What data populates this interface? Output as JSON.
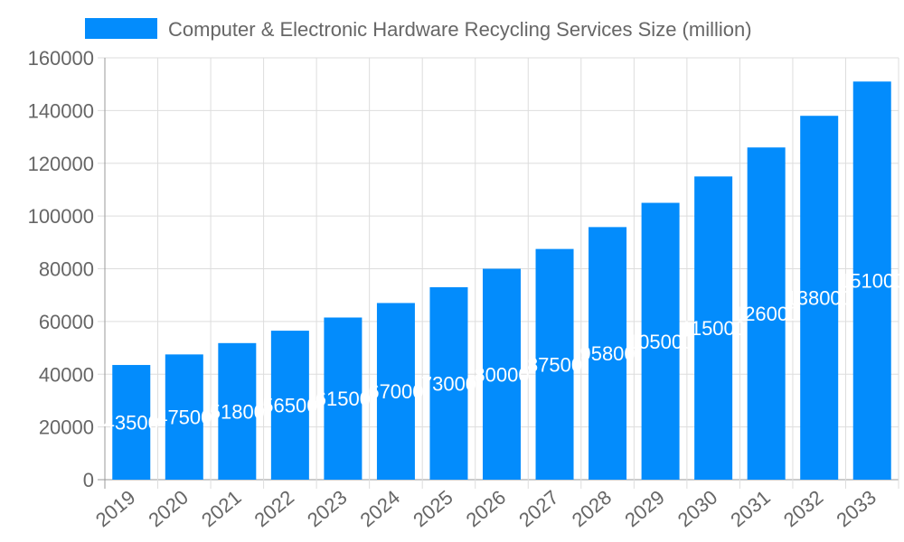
{
  "chart_data": {
    "type": "bar",
    "categories": [
      "2019",
      "2020",
      "2021",
      "2022",
      "2023",
      "2024",
      "2025",
      "2026",
      "2027",
      "2028",
      "2029",
      "2030",
      "2031",
      "2032",
      "2033"
    ],
    "series": [
      {
        "name": "Computer & Electronic Hardware Recycling Services Size (million)",
        "values": [
          43500,
          47500,
          51800,
          56500,
          61500,
          67000,
          73000,
          80000,
          87500,
          95800,
          105000,
          115000,
          126000,
          138000,
          151000
        ]
      }
    ],
    "ylim": [
      0,
      160000
    ],
    "yticks": [
      0,
      20000,
      40000,
      60000,
      80000,
      100000,
      120000,
      140000,
      160000
    ],
    "grid": true,
    "legend": "top",
    "bar_color": "#038cfc",
    "data_labels": true
  }
}
